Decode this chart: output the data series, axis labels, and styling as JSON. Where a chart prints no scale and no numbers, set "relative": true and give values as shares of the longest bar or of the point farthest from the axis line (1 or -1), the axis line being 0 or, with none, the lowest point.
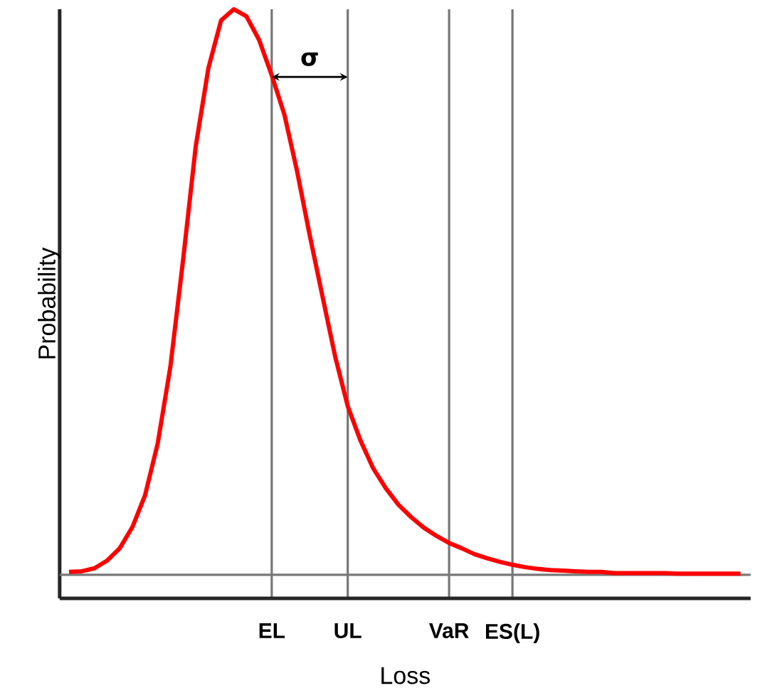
{
  "chart_data": {
    "type": "line",
    "relative": true,
    "xlabel": "Loss",
    "ylabel": "Probability",
    "categories": [
      null,
      null,
      null,
      null,
      null,
      null,
      null,
      null,
      null,
      null,
      null,
      null,
      null,
      null,
      null,
      null,
      "EL",
      null,
      null,
      null,
      null,
      null,
      "UL",
      null,
      null,
      null,
      null,
      null,
      null,
      null,
      "VaR",
      null,
      null,
      null,
      null,
      "ES(L)",
      null,
      null,
      null,
      null,
      null,
      null,
      null,
      null,
      null,
      null,
      null,
      null,
      null,
      null,
      null,
      null,
      null,
      null
    ],
    "series": [
      {
        "color": "#ff0000",
        "values": [
          0.045,
          0.046,
          0.051,
          0.064,
          0.085,
          0.121,
          0.175,
          0.263,
          0.393,
          0.574,
          0.767,
          0.9,
          0.981,
          1,
          0.988,
          0.948,
          0.888,
          0.821,
          0.725,
          0.616,
          0.513,
          0.411,
          0.326,
          0.268,
          0.221,
          0.187,
          0.159,
          0.138,
          0.12,
          0.106,
          0.094,
          0.085,
          0.075,
          0.068,
          0.062,
          0.057,
          0.053,
          0.05,
          0.048,
          0.047,
          0.046,
          0.045,
          0.045,
          0.043,
          0.043,
          0.043,
          0.043,
          0.043,
          0.042,
          0.042,
          0.042,
          0.042,
          0.042,
          0.042
        ]
      }
    ],
    "ref_lines": [
      {
        "axis": "y",
        "value": 0.04,
        "color": "#777777"
      }
    ],
    "annotations": [
      "σ"
    ],
    "grid": "x",
    "marker": "none",
    "line_style": "solid"
  }
}
